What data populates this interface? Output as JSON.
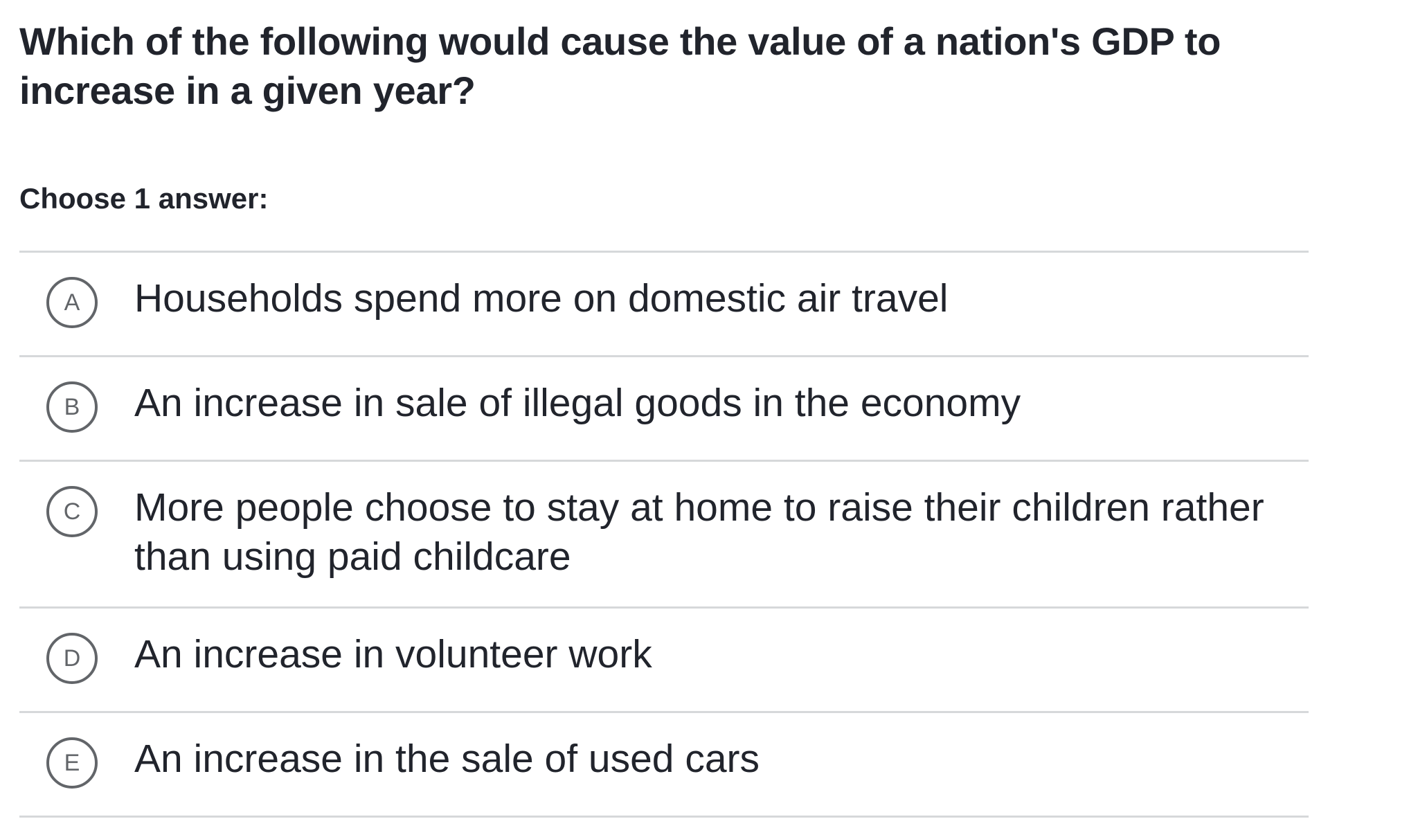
{
  "question": {
    "text": "Which of the following would cause the value of a nation's GDP to increase in a given year?"
  },
  "prompt": "Choose 1 answer:",
  "choices": [
    {
      "letter": "A",
      "text": "Households spend more on domestic air travel"
    },
    {
      "letter": "B",
      "text": "An increase in sale of illegal goods in the economy"
    },
    {
      "letter": "C",
      "text": "More people choose to stay at home to raise their children rather than using paid childcare"
    },
    {
      "letter": "D",
      "text": "An increase in volunteer work"
    },
    {
      "letter": "E",
      "text": "An increase in the sale of used cars"
    }
  ],
  "colors": {
    "text": "#21242c",
    "circle": "#626569",
    "divider": "#d6d8da",
    "background": "#ffffff"
  }
}
